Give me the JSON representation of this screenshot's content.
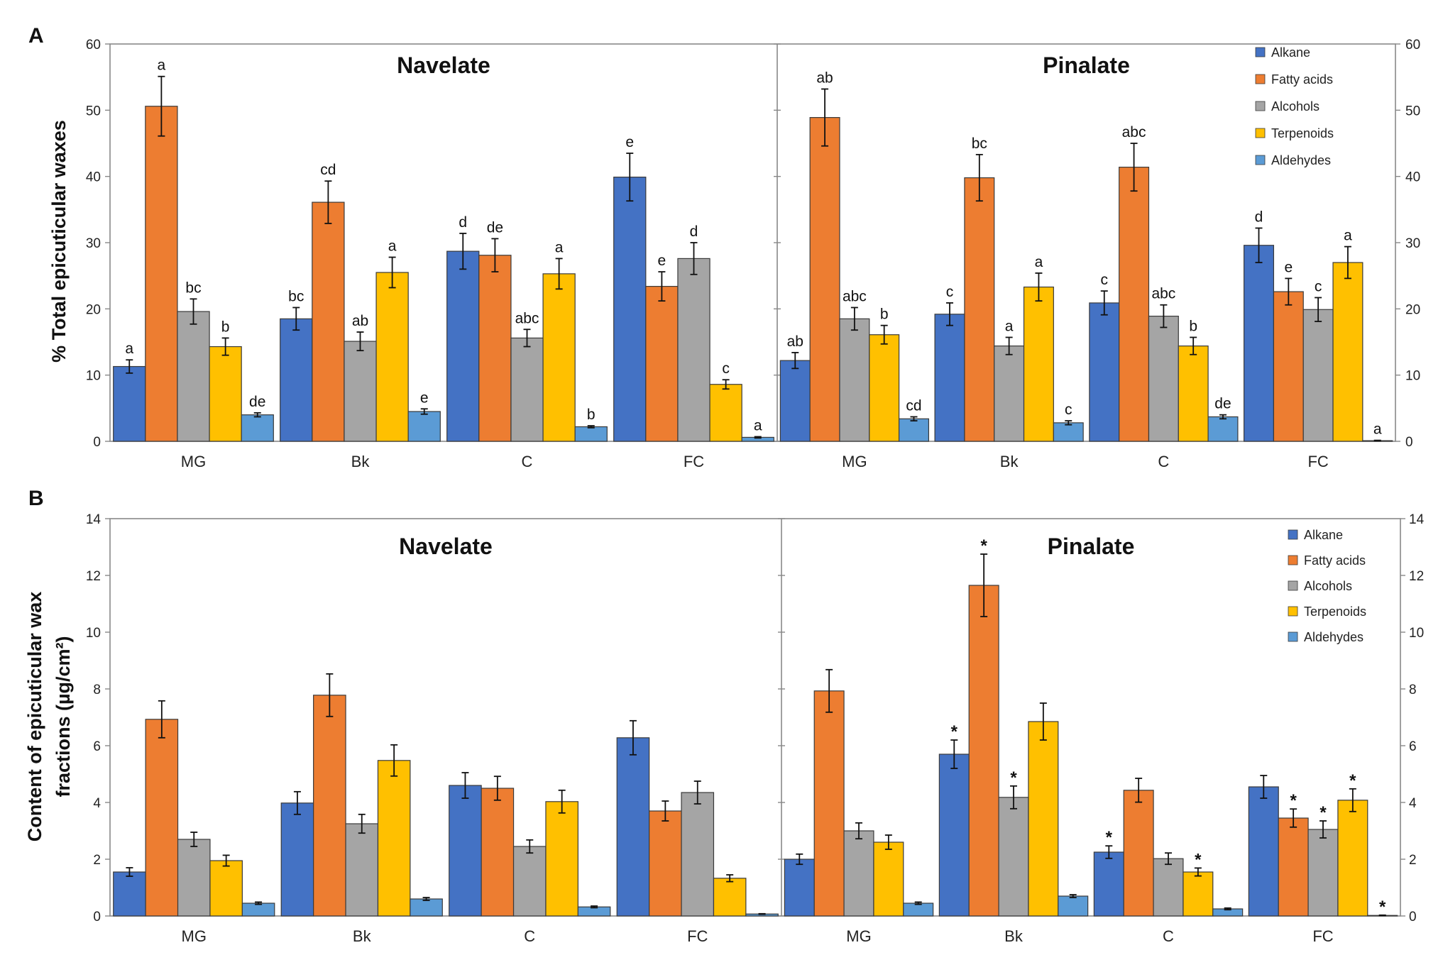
{
  "colors": {
    "Alkane": "#4472C4",
    "Fatty acids": "#ED7D31",
    "Alcohols": "#A5A5A5",
    "Terpenoids": "#FFC000",
    "Aldehydes": "#5B9BD5"
  },
  "chart_data": [
    {
      "type": "bar",
      "panel_label": "A",
      "ylabel": "% Total epicuticular waxes",
      "ylim": [
        0,
        60
      ],
      "yticks": [
        0,
        10,
        20,
        30,
        40,
        50,
        60
      ],
      "categories": [
        "MG",
        "Bk",
        "C",
        "FC"
      ],
      "legend": [
        "Alkane",
        "Fatty acids",
        "Alcohols",
        "Terpenoids",
        "Aldehydes"
      ],
      "legend_position": "top-right",
      "groups": [
        {
          "title": "Navelate",
          "series": [
            {
              "name": "Alkane",
              "values": [
                11.3,
                18.5,
                28.7,
                39.9
              ],
              "errors": [
                1.0,
                1.7,
                2.7,
                3.6
              ],
              "labels": [
                "a",
                "bc",
                "d",
                "e"
              ]
            },
            {
              "name": "Fatty acids",
              "values": [
                50.6,
                36.1,
                28.1,
                23.4
              ],
              "errors": [
                4.5,
                3.2,
                2.5,
                2.2
              ],
              "labels": [
                "a",
                "cd",
                "de",
                "e"
              ]
            },
            {
              "name": "Alcohols",
              "values": [
                19.6,
                15.1,
                15.6,
                27.6
              ],
              "errors": [
                1.9,
                1.4,
                1.3,
                2.4
              ],
              "labels": [
                "bc",
                "ab",
                "abc",
                "d"
              ]
            },
            {
              "name": "Terpenoids",
              "values": [
                14.3,
                25.5,
                25.3,
                8.6
              ],
              "errors": [
                1.3,
                2.3,
                2.3,
                0.7
              ],
              "labels": [
                "b",
                "a",
                "a",
                "c"
              ]
            },
            {
              "name": "Aldehydes",
              "values": [
                4.0,
                4.5,
                2.2,
                0.6
              ],
              "errors": [
                0.3,
                0.4,
                0.15,
                0.1
              ],
              "labels": [
                "de",
                "e",
                "b",
                "a"
              ]
            }
          ]
        },
        {
          "title": "Pinalate",
          "series": [
            {
              "name": "Alkane",
              "values": [
                12.2,
                19.2,
                20.9,
                29.6
              ],
              "errors": [
                1.2,
                1.7,
                1.8,
                2.6
              ],
              "labels": [
                "ab",
                "c",
                "c",
                "d"
              ]
            },
            {
              "name": "Fatty acids",
              "values": [
                48.9,
                39.8,
                41.4,
                22.6
              ],
              "errors": [
                4.3,
                3.5,
                3.6,
                2.0
              ],
              "labels": [
                "ab",
                "bc",
                "abc",
                "e"
              ]
            },
            {
              "name": "Alcohols",
              "values": [
                18.5,
                14.4,
                18.9,
                19.9
              ],
              "errors": [
                1.7,
                1.3,
                1.7,
                1.8
              ],
              "labels": [
                "abc",
                "a",
                "abc",
                "c"
              ]
            },
            {
              "name": "Terpenoids",
              "values": [
                16.1,
                23.3,
                14.4,
                27.0
              ],
              "errors": [
                1.4,
                2.1,
                1.3,
                2.4
              ],
              "labels": [
                "b",
                "a",
                "b",
                "a"
              ]
            },
            {
              "name": "Aldehydes",
              "values": [
                3.4,
                2.8,
                3.7,
                0.1
              ],
              "errors": [
                0.3,
                0.3,
                0.3,
                0.05
              ],
              "labels": [
                "cd",
                "c",
                "de",
                "a"
              ]
            }
          ]
        }
      ]
    },
    {
      "type": "bar",
      "panel_label": "B",
      "ylabel_line1": "Content of epicuticular wax",
      "ylabel_line2": "fractions (µg/cm²)",
      "ylim": [
        0,
        14
      ],
      "yticks": [
        0,
        2,
        4,
        6,
        8,
        10,
        12,
        14
      ],
      "categories": [
        "MG",
        "Bk",
        "C",
        "FC"
      ],
      "legend": [
        "Alkane",
        "Fatty acids",
        "Alcohols",
        "Terpenoids",
        "Aldehydes"
      ],
      "legend_position": "top-right",
      "groups": [
        {
          "title": "Navelate",
          "series": [
            {
              "name": "Alkane",
              "values": [
                1.55,
                3.98,
                4.6,
                6.28
              ],
              "errors": [
                0.15,
                0.4,
                0.45,
                0.6
              ],
              "labels": [
                "",
                "",
                "",
                ""
              ]
            },
            {
              "name": "Fatty acids",
              "values": [
                6.93,
                7.78,
                4.5,
                3.7
              ],
              "errors": [
                0.65,
                0.75,
                0.42,
                0.35
              ],
              "labels": [
                "",
                "",
                "",
                ""
              ]
            },
            {
              "name": "Alcohols",
              "values": [
                2.7,
                3.25,
                2.45,
                4.35
              ],
              "errors": [
                0.25,
                0.33,
                0.23,
                0.4
              ],
              "labels": [
                "",
                "",
                "",
                ""
              ]
            },
            {
              "name": "Terpenoids",
              "values": [
                1.95,
                5.48,
                4.03,
                1.33
              ],
              "errors": [
                0.19,
                0.55,
                0.4,
                0.12
              ],
              "labels": [
                "",
                "",
                "",
                ""
              ]
            },
            {
              "name": "Aldehydes",
              "values": [
                0.45,
                0.6,
                0.32,
                0.07
              ],
              "errors": [
                0.04,
                0.05,
                0.03,
                0.01
              ],
              "labels": [
                "",
                "",
                "",
                ""
              ]
            }
          ]
        },
        {
          "title": "Pinalate",
          "series": [
            {
              "name": "Alkane",
              "values": [
                2.0,
                5.7,
                2.25,
                4.55
              ],
              "errors": [
                0.18,
                0.5,
                0.22,
                0.4
              ],
              "labels": [
                "",
                "*",
                "*",
                ""
              ]
            },
            {
              "name": "Fatty acids",
              "values": [
                7.93,
                11.65,
                4.43,
                3.45
              ],
              "errors": [
                0.75,
                1.1,
                0.42,
                0.32
              ],
              "labels": [
                "",
                "*",
                "",
                "*"
              ]
            },
            {
              "name": "Alcohols",
              "values": [
                3.0,
                4.18,
                2.02,
                3.05
              ],
              "errors": [
                0.28,
                0.4,
                0.2,
                0.3
              ],
              "labels": [
                "",
                "*",
                "",
                "*"
              ]
            },
            {
              "name": "Terpenoids",
              "values": [
                2.6,
                6.85,
                1.55,
                4.08
              ],
              "errors": [
                0.25,
                0.65,
                0.14,
                0.4
              ],
              "labels": [
                "",
                "",
                "*",
                "*"
              ]
            },
            {
              "name": "Aldehydes",
              "values": [
                0.45,
                0.7,
                0.25,
                0.02
              ],
              "errors": [
                0.04,
                0.05,
                0.03,
                0.01
              ],
              "labels": [
                "",
                "",
                "",
                "*"
              ]
            }
          ]
        }
      ]
    }
  ]
}
